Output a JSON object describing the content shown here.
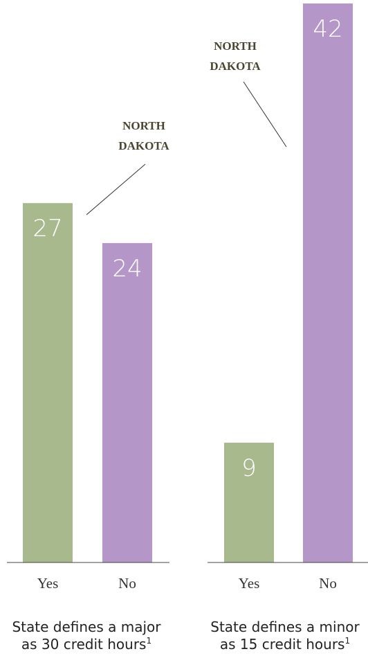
{
  "chart_data": [
    {
      "type": "bar",
      "title": [
        "State defines a major",
        "as 30 credit hours"
      ],
      "title_footnote": "1",
      "categories": [
        "Yes",
        "No"
      ],
      "values": [
        27,
        24
      ],
      "colors": [
        "#a7b98d",
        "#b596c9"
      ],
      "annotation": [
        "NORTH",
        "DAKOTA"
      ]
    },
    {
      "type": "bar",
      "title": [
        "State defines a minor",
        "as 15 credit hours"
      ],
      "title_footnote": "1",
      "categories": [
        "Yes",
        "No"
      ],
      "values": [
        9,
        42
      ],
      "colors": [
        "#a7b98d",
        "#b596c9"
      ],
      "annotation": [
        "NORTH",
        "DAKOTA"
      ]
    }
  ]
}
